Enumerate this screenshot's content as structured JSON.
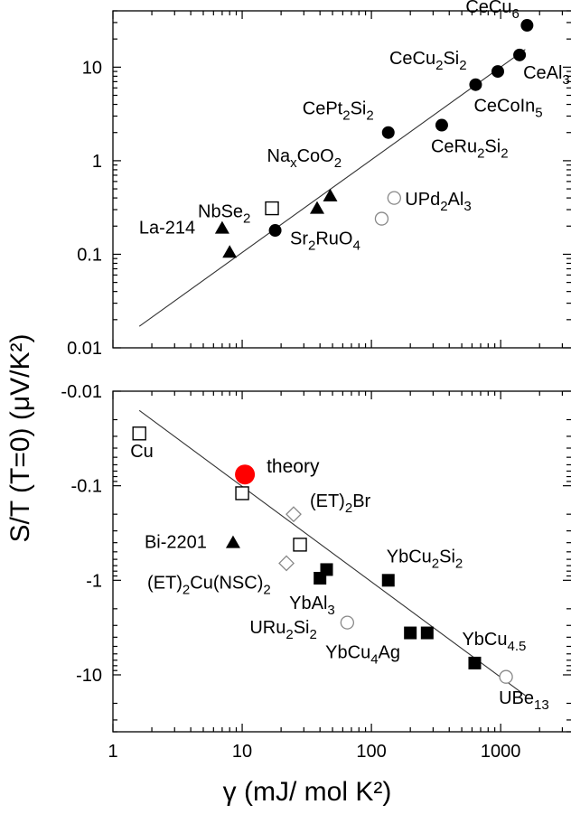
{
  "chart_data": [
    {
      "type": "scatter",
      "xscale": "log",
      "yscale": "log",
      "xlim": [
        1,
        3500
      ],
      "ylim": [
        0.01,
        40
      ],
      "yticks": [
        "0.01",
        "0.1",
        "1",
        "10"
      ],
      "fit_line": [
        [
          1.6,
          0.017
        ],
        [
          1550,
          15.5
        ]
      ],
      "points": [
        {
          "label": "La-214",
          "gamma": 7,
          "value": 0.19,
          "marker": "triangle-filled"
        },
        {
          "label": "",
          "gamma": 8,
          "value": 0.105,
          "marker": "triangle-filled"
        },
        {
          "label": "NbSe2",
          "gamma": 17,
          "value": 0.31,
          "marker": "square-open"
        },
        {
          "label": "",
          "gamma": 18,
          "value": 0.18,
          "marker": "circle-filled"
        },
        {
          "label": "Sr2RuO4",
          "gamma": 38,
          "value": 0.31,
          "marker": "triangle-filled"
        },
        {
          "label": "NaxCoO2",
          "gamma": 48,
          "value": 0.42,
          "marker": "triangle-filled"
        },
        {
          "label": "",
          "gamma": 120,
          "value": 0.24,
          "marker": "circle-open"
        },
        {
          "label": "UPd2Al3",
          "gamma": 150,
          "value": 0.4,
          "marker": "circle-open"
        },
        {
          "label": "CePt2Si2",
          "gamma": 135,
          "value": 2.0,
          "marker": "circle-filled"
        },
        {
          "label": "CeRu2Si2",
          "gamma": 350,
          "value": 2.4,
          "marker": "circle-filled"
        },
        {
          "label": "CeCoIn5",
          "gamma": 640,
          "value": 6.5,
          "marker": "circle-filled"
        },
        {
          "label": "CeCu2Si2",
          "gamma": 950,
          "value": 9.0,
          "marker": "circle-filled"
        },
        {
          "label": "CeAl3",
          "gamma": 1400,
          "value": 13.5,
          "marker": "circle-filled"
        },
        {
          "label": "CeCu6",
          "gamma": 1600,
          "value": 28.0,
          "marker": "circle-filled"
        }
      ]
    },
    {
      "type": "scatter",
      "xscale": "log",
      "yscale": "log",
      "xlim": [
        1,
        3500
      ],
      "ylim": [
        -0.01,
        -40
      ],
      "yticks": [
        "-0.01",
        "-0.1",
        "-1",
        "-10"
      ],
      "fit_line": [
        [
          1.6,
          -0.016
        ],
        [
          1550,
          -16.5
        ]
      ],
      "points": [
        {
          "label": "Cu",
          "gamma": 1.6,
          "value": -0.028,
          "marker": "square-open"
        },
        {
          "label": "theory",
          "gamma": 10.5,
          "value": -0.076,
          "marker": "circle-red-large"
        },
        {
          "label": "",
          "gamma": 10,
          "value": -0.12,
          "marker": "square-open"
        },
        {
          "label": "(ET)2Br",
          "gamma": 25,
          "value": -0.2,
          "marker": "diamond-open"
        },
        {
          "label": "Bi-2201",
          "gamma": 8.5,
          "value": -0.4,
          "marker": "triangle-filled"
        },
        {
          "label": "",
          "gamma": 28,
          "value": -0.42,
          "marker": "square-open"
        },
        {
          "label": "(ET)2Cu(NSC)2",
          "gamma": 22,
          "value": -0.66,
          "marker": "diamond-open"
        },
        {
          "label": "YbAl3",
          "gamma": 40,
          "value": -0.95,
          "marker": "square-filled"
        },
        {
          "label": "",
          "gamma": 45,
          "value": -0.77,
          "marker": "square-filled"
        },
        {
          "label": "YbCu2Si2",
          "gamma": 135,
          "value": -1.0,
          "marker": "square-filled"
        },
        {
          "label": "URu2Si2",
          "gamma": 65,
          "value": -2.8,
          "marker": "circle-open"
        },
        {
          "label": "YbCu4Ag",
          "gamma": 200,
          "value": -3.6,
          "marker": "square-filled"
        },
        {
          "label": "",
          "gamma": 270,
          "value": -3.6,
          "marker": "square-filled"
        },
        {
          "label": "YbCu4.5",
          "gamma": 630,
          "value": -7.5,
          "marker": "square-filled"
        },
        {
          "label": "UBe13",
          "gamma": 1100,
          "value": -10.5,
          "marker": "circle-open"
        }
      ]
    }
  ],
  "axes": {
    "ylabel": "S/T  (T=0)  (μV/K²)",
    "xlabel": "γ (mJ/ mol K²)",
    "xticks": [
      "1",
      "10",
      "100",
      "1000"
    ]
  },
  "colors": {
    "axis": "#000000",
    "marker": "#000000",
    "open_marker_gray": "#888888",
    "theory": "#ff0000"
  }
}
